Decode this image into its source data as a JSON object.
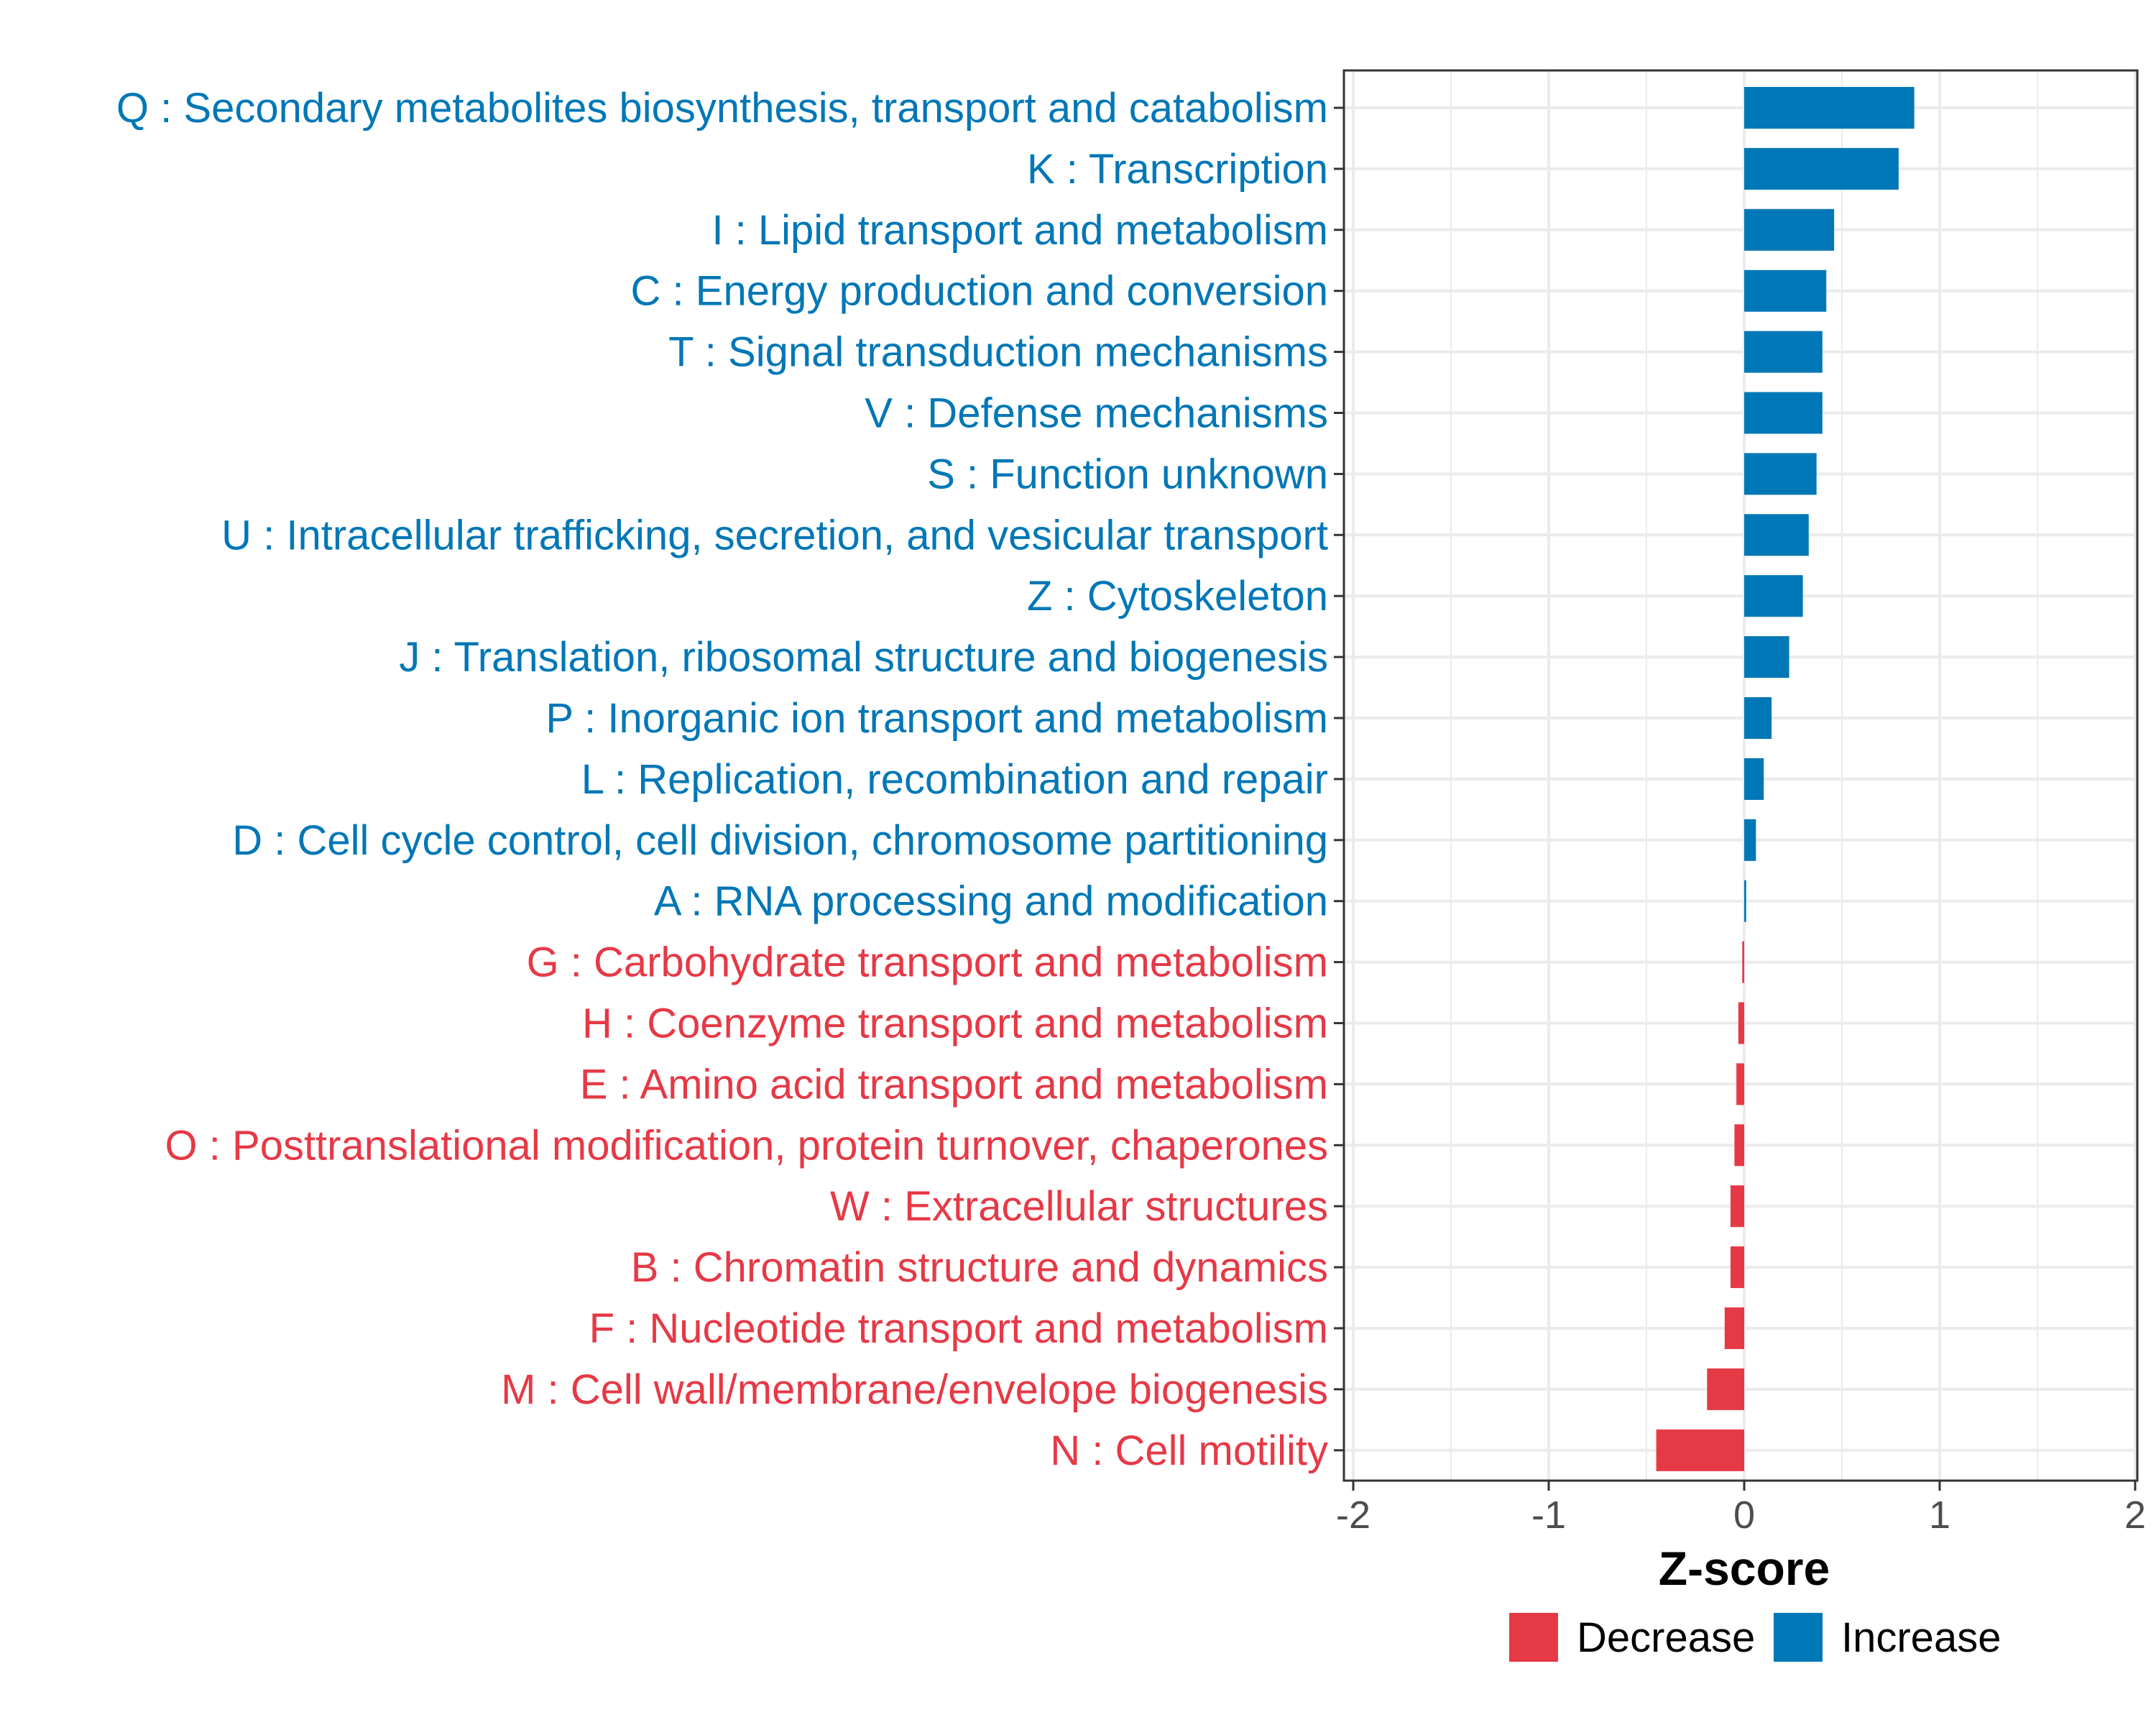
{
  "chart_data": {
    "type": "bar",
    "orientation": "horizontal",
    "xlabel": "Z-score",
    "xlim": [
      -2,
      2
    ],
    "xticks": [
      -2,
      -1,
      0,
      1,
      2
    ],
    "xtick_labels": [
      "-2",
      "-1",
      "0",
      "1",
      "2"
    ],
    "grid": true,
    "legend_position": "bottom",
    "colors": {
      "Increase": "#0077b6",
      "Decrease": "#e63946"
    },
    "legend": [
      {
        "name": "Decrease",
        "color": "#e63946"
      },
      {
        "name": "Increase",
        "color": "#0077b6"
      }
    ],
    "categories": [
      "Q : Secondary metabolites biosynthesis, transport and catabolism",
      "K : Transcription",
      "I : Lipid transport and metabolism",
      "C : Energy production and conversion",
      "T : Signal transduction mechanisms",
      "V : Defense mechanisms",
      "S : Function unknown",
      "U : Intracellular trafficking, secretion, and vesicular transport",
      "Z : Cytoskeleton",
      "J : Translation, ribosomal structure and biogenesis",
      "P : Inorganic ion transport and metabolism",
      "L : Replication, recombination and repair",
      "D : Cell cycle control, cell division, chromosome partitioning",
      "A : RNA processing and modification",
      "G : Carbohydrate transport and metabolism",
      "H : Coenzyme transport and metabolism",
      "E : Amino acid transport and metabolism",
      "O : Posttranslational modification, protein turnover, chaperones",
      "W : Extracellular structures",
      "B : Chromatin structure and dynamics",
      "F : Nucleotide transport and metabolism",
      "M : Cell wall/membrane/envelope biogenesis",
      "N : Cell motility"
    ],
    "values": [
      0.87,
      0.79,
      0.46,
      0.42,
      0.4,
      0.4,
      0.37,
      0.33,
      0.3,
      0.23,
      0.14,
      0.1,
      0.06,
      0.01,
      -0.01,
      -0.03,
      -0.04,
      -0.05,
      -0.07,
      -0.07,
      -0.1,
      -0.19,
      -0.45
    ],
    "direction": [
      "Increase",
      "Increase",
      "Increase",
      "Increase",
      "Increase",
      "Increase",
      "Increase",
      "Increase",
      "Increase",
      "Increase",
      "Increase",
      "Increase",
      "Increase",
      "Increase",
      "Decrease",
      "Decrease",
      "Decrease",
      "Decrease",
      "Decrease",
      "Decrease",
      "Decrease",
      "Decrease",
      "Decrease"
    ]
  }
}
